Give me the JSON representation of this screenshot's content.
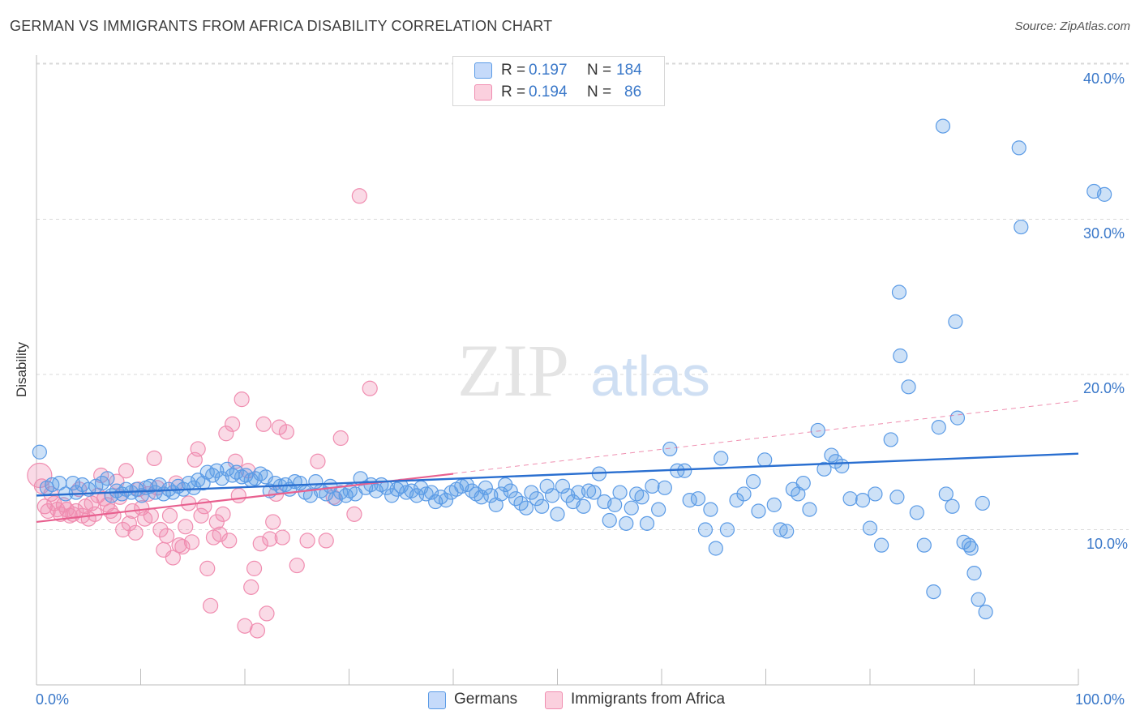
{
  "title": "GERMAN VS IMMIGRANTS FROM AFRICA DISABILITY CORRELATION CHART",
  "source": "Source: ZipAtlas.com",
  "watermark": {
    "zip": "ZIP",
    "atlas": "atlas"
  },
  "legend": {
    "germans": {
      "r_label": "R = ",
      "r_value": "0.197",
      "n_label": "N = ",
      "n_value": "184"
    },
    "africa": {
      "r_label": "R = ",
      "r_value": "0.194",
      "n_label": "N = ",
      "n_value": "86"
    }
  },
  "colors": {
    "germans": "#5b9be6",
    "africa": "#f08db0",
    "germans_line": "#2a6fd0",
    "africa_line": "#e8608f",
    "tick": "#3a78c9"
  },
  "chart_data": {
    "type": "scatter",
    "title": "GERMAN VS IMMIGRANTS FROM AFRICA DISABILITY CORRELATION CHART",
    "xlabel": "",
    "ylabel": "Disability",
    "xlim": [
      0,
      100
    ],
    "ylim": [
      0,
      40
    ],
    "x_tick_labels": [
      "0.0%",
      "100.0%"
    ],
    "y_ticks": [
      10,
      20,
      30,
      40
    ],
    "y_tick_labels": [
      "10.0%",
      "20.0%",
      "30.0%",
      "40.0%"
    ],
    "grid": "horizontal dashed",
    "legend_position": "top-center",
    "series": [
      {
        "name": "Germans",
        "r": 0.197,
        "n": 184,
        "trend": {
          "x": [
            0,
            100
          ],
          "y": [
            12.2,
            14.9
          ]
        },
        "points": [
          [
            0.3,
            15.0
          ],
          [
            1.0,
            12.7
          ],
          [
            1.5,
            12.9
          ],
          [
            2.2,
            13.0
          ],
          [
            2.8,
            12.3
          ],
          [
            3.5,
            13.0
          ],
          [
            3.8,
            12.4
          ],
          [
            4.4,
            12.9
          ],
          [
            5.0,
            12.6
          ],
          [
            5.7,
            12.8
          ],
          [
            6.3,
            13.0
          ],
          [
            6.8,
            13.3
          ],
          [
            7.2,
            12.2
          ],
          [
            7.7,
            12.5
          ],
          [
            8.2,
            12.3
          ],
          [
            8.6,
            12.6
          ],
          [
            9.1,
            12.4
          ],
          [
            9.6,
            12.6
          ],
          [
            10.1,
            12.2
          ],
          [
            10.5,
            12.7
          ],
          [
            10.9,
            12.8
          ],
          [
            11.4,
            12.4
          ],
          [
            11.8,
            12.9
          ],
          [
            12.2,
            12.3
          ],
          [
            12.7,
            12.6
          ],
          [
            13.1,
            12.4
          ],
          [
            13.6,
            12.8
          ],
          [
            14.1,
            12.6
          ],
          [
            14.6,
            13.0
          ],
          [
            15.1,
            12.7
          ],
          [
            15.5,
            13.2
          ],
          [
            16.0,
            13.0
          ],
          [
            16.4,
            13.7
          ],
          [
            16.9,
            13.5
          ],
          [
            17.3,
            13.8
          ],
          [
            17.8,
            13.3
          ],
          [
            18.3,
            13.9
          ],
          [
            18.8,
            13.5
          ],
          [
            19.2,
            13.7
          ],
          [
            19.7,
            13.4
          ],
          [
            20.1,
            13.5
          ],
          [
            20.6,
            13.2
          ],
          [
            21.0,
            13.3
          ],
          [
            21.5,
            13.6
          ],
          [
            22.0,
            13.4
          ],
          [
            22.4,
            12.5
          ],
          [
            22.9,
            13.0
          ],
          [
            23.4,
            12.8
          ],
          [
            23.9,
            12.9
          ],
          [
            24.3,
            12.6
          ],
          [
            24.8,
            13.1
          ],
          [
            25.3,
            13.0
          ],
          [
            25.8,
            12.4
          ],
          [
            26.3,
            12.2
          ],
          [
            26.8,
            13.1
          ],
          [
            27.3,
            12.5
          ],
          [
            27.8,
            12.3
          ],
          [
            28.2,
            12.8
          ],
          [
            28.7,
            12.0
          ],
          [
            29.2,
            12.4
          ],
          [
            29.7,
            12.2
          ],
          [
            30.1,
            12.5
          ],
          [
            30.6,
            12.3
          ],
          [
            31.1,
            13.3
          ],
          [
            31.6,
            12.7
          ],
          [
            32.1,
            12.9
          ],
          [
            32.6,
            12.5
          ],
          [
            33.1,
            12.9
          ],
          [
            33.6,
            12.7
          ],
          [
            34.1,
            12.2
          ],
          [
            34.6,
            12.6
          ],
          [
            35.0,
            12.8
          ],
          [
            35.5,
            12.4
          ],
          [
            36.0,
            12.5
          ],
          [
            36.5,
            12.2
          ],
          [
            36.9,
            12.7
          ],
          [
            37.4,
            12.3
          ],
          [
            37.9,
            12.4
          ],
          [
            38.3,
            11.8
          ],
          [
            38.8,
            12.1
          ],
          [
            39.3,
            11.9
          ],
          [
            39.8,
            12.4
          ],
          [
            40.3,
            12.6
          ],
          [
            40.8,
            12.8
          ],
          [
            41.3,
            12.9
          ],
          [
            41.8,
            12.5
          ],
          [
            42.2,
            12.3
          ],
          [
            42.7,
            12.1
          ],
          [
            43.1,
            12.7
          ],
          [
            43.6,
            12.2
          ],
          [
            44.1,
            11.6
          ],
          [
            44.6,
            12.3
          ],
          [
            45.0,
            12.9
          ],
          [
            45.5,
            12.5
          ],
          [
            46.0,
            12.0
          ],
          [
            46.5,
            11.7
          ],
          [
            47.0,
            11.4
          ],
          [
            47.5,
            12.4
          ],
          [
            48.0,
            12.0
          ],
          [
            48.5,
            11.5
          ],
          [
            49.0,
            12.8
          ],
          [
            49.5,
            12.2
          ],
          [
            50.0,
            11.0
          ],
          [
            50.5,
            12.8
          ],
          [
            51.0,
            12.2
          ],
          [
            51.5,
            11.8
          ],
          [
            52.0,
            12.4
          ],
          [
            52.5,
            11.5
          ],
          [
            53.0,
            12.5
          ],
          [
            53.5,
            12.4
          ],
          [
            54.0,
            13.6
          ],
          [
            54.5,
            11.8
          ],
          [
            55.0,
            10.6
          ],
          [
            55.5,
            11.6
          ],
          [
            56.0,
            12.4
          ],
          [
            56.6,
            10.4
          ],
          [
            57.1,
            11.4
          ],
          [
            57.6,
            12.3
          ],
          [
            58.1,
            12.1
          ],
          [
            58.6,
            10.4
          ],
          [
            59.1,
            12.8
          ],
          [
            59.7,
            11.3
          ],
          [
            60.3,
            12.7
          ],
          [
            60.8,
            15.2
          ],
          [
            61.5,
            13.8
          ],
          [
            62.2,
            13.8
          ],
          [
            62.7,
            11.9
          ],
          [
            63.5,
            12.0
          ],
          [
            64.2,
            10.0
          ],
          [
            64.7,
            11.3
          ],
          [
            65.2,
            8.8
          ],
          [
            65.7,
            14.6
          ],
          [
            66.3,
            10.0
          ],
          [
            67.2,
            11.9
          ],
          [
            67.9,
            12.3
          ],
          [
            68.8,
            13.1
          ],
          [
            69.3,
            11.2
          ],
          [
            69.9,
            14.5
          ],
          [
            70.8,
            11.6
          ],
          [
            71.4,
            10.0
          ],
          [
            72.0,
            9.9
          ],
          [
            72.6,
            12.6
          ],
          [
            73.1,
            12.3
          ],
          [
            73.6,
            13.0
          ],
          [
            74.2,
            11.3
          ],
          [
            75.0,
            16.4
          ],
          [
            75.6,
            13.9
          ],
          [
            76.3,
            14.8
          ],
          [
            76.7,
            14.4
          ],
          [
            77.3,
            14.1
          ],
          [
            78.1,
            12.0
          ],
          [
            79.3,
            11.9
          ],
          [
            80.0,
            10.1
          ],
          [
            80.5,
            12.3
          ],
          [
            81.1,
            9.0
          ],
          [
            82.0,
            15.8
          ],
          [
            82.6,
            12.1
          ],
          [
            82.8,
            25.3
          ],
          [
            82.9,
            21.2
          ],
          [
            83.7,
            19.2
          ],
          [
            84.5,
            11.1
          ],
          [
            85.2,
            9.0
          ],
          [
            86.1,
            6.0
          ],
          [
            86.6,
            16.6
          ],
          [
            87.0,
            36.0
          ],
          [
            87.3,
            12.3
          ],
          [
            87.9,
            11.5
          ],
          [
            88.2,
            23.4
          ],
          [
            88.4,
            17.2
          ],
          [
            89.0,
            9.2
          ],
          [
            89.5,
            9.0
          ],
          [
            89.7,
            8.8
          ],
          [
            90.0,
            7.2
          ],
          [
            90.4,
            5.5
          ],
          [
            90.8,
            11.7
          ],
          [
            91.1,
            4.7
          ],
          [
            94.3,
            34.6
          ],
          [
            94.5,
            29.5
          ],
          [
            101.5,
            31.8
          ],
          [
            102.5,
            31.6
          ]
        ]
      },
      {
        "name": "Immigrants from Africa",
        "r": 0.194,
        "n": 86,
        "trend": {
          "x": [
            0,
            40
          ],
          "y": [
            10.5,
            13.6
          ]
        },
        "trend_extended": {
          "x": [
            0,
            100
          ],
          "y": [
            10.5,
            18.3
          ]
        },
        "points": [
          [
            0.3,
            13.5
          ],
          [
            0.5,
            12.8
          ],
          [
            0.8,
            11.5
          ],
          [
            1.1,
            11.2
          ],
          [
            1.4,
            12.3
          ],
          [
            1.7,
            11.7
          ],
          [
            2.0,
            11.3
          ],
          [
            2.3,
            11.0
          ],
          [
            2.6,
            11.6
          ],
          [
            2.9,
            11.3
          ],
          [
            3.2,
            10.9
          ],
          [
            3.5,
            11.0
          ],
          [
            3.8,
            11.2
          ],
          [
            4.1,
            12.6
          ],
          [
            4.4,
            10.9
          ],
          [
            4.7,
            11.5
          ],
          [
            5.0,
            10.7
          ],
          [
            5.3,
            11.7
          ],
          [
            5.6,
            11.0
          ],
          [
            5.9,
            12.2
          ],
          [
            6.2,
            13.5
          ],
          [
            6.5,
            12.0
          ],
          [
            6.8,
            11.6
          ],
          [
            7.1,
            11.2
          ],
          [
            7.4,
            10.9
          ],
          [
            7.7,
            13.1
          ],
          [
            8.0,
            12.1
          ],
          [
            8.3,
            10.0
          ],
          [
            8.6,
            13.8
          ],
          [
            8.9,
            10.4
          ],
          [
            9.2,
            11.2
          ],
          [
            9.5,
            9.8
          ],
          [
            9.8,
            12.6
          ],
          [
            10.1,
            11.4
          ],
          [
            10.4,
            10.7
          ],
          [
            10.7,
            12.3
          ],
          [
            11.0,
            10.9
          ],
          [
            11.3,
            14.6
          ],
          [
            11.6,
            12.7
          ],
          [
            11.9,
            10.0
          ],
          [
            12.2,
            8.7
          ],
          [
            12.5,
            9.6
          ],
          [
            12.8,
            10.9
          ],
          [
            13.1,
            8.2
          ],
          [
            13.4,
            13.0
          ],
          [
            13.7,
            9.0
          ],
          [
            14.0,
            8.9
          ],
          [
            14.3,
            10.2
          ],
          [
            14.6,
            11.7
          ],
          [
            14.9,
            9.2
          ],
          [
            15.2,
            14.5
          ],
          [
            15.5,
            15.2
          ],
          [
            15.8,
            10.9
          ],
          [
            16.1,
            11.5
          ],
          [
            16.4,
            7.5
          ],
          [
            16.7,
            5.1
          ],
          [
            17.0,
            9.5
          ],
          [
            17.3,
            10.5
          ],
          [
            17.6,
            9.7
          ],
          [
            17.9,
            11.0
          ],
          [
            18.2,
            16.2
          ],
          [
            18.5,
            9.3
          ],
          [
            18.8,
            16.8
          ],
          [
            19.1,
            14.4
          ],
          [
            19.4,
            12.2
          ],
          [
            19.7,
            18.4
          ],
          [
            20.0,
            3.8
          ],
          [
            20.3,
            13.8
          ],
          [
            20.6,
            6.3
          ],
          [
            20.9,
            7.5
          ],
          [
            21.2,
            3.5
          ],
          [
            21.5,
            9.1
          ],
          [
            21.8,
            16.8
          ],
          [
            22.1,
            4.6
          ],
          [
            22.4,
            9.4
          ],
          [
            22.7,
            10.5
          ],
          [
            23.0,
            12.3
          ],
          [
            23.3,
            16.6
          ],
          [
            23.6,
            9.5
          ],
          [
            24.0,
            16.3
          ],
          [
            25.0,
            7.7
          ],
          [
            26.0,
            9.3
          ],
          [
            27.0,
            14.4
          ],
          [
            27.8,
            9.3
          ],
          [
            28.5,
            12.1
          ],
          [
            29.2,
            15.9
          ],
          [
            30.5,
            11.0
          ],
          [
            31.0,
            31.5
          ],
          [
            32.0,
            19.1
          ]
        ]
      }
    ]
  },
  "bottom_legend": {
    "germans": "Germans",
    "africa": "Immigrants from Africa"
  }
}
